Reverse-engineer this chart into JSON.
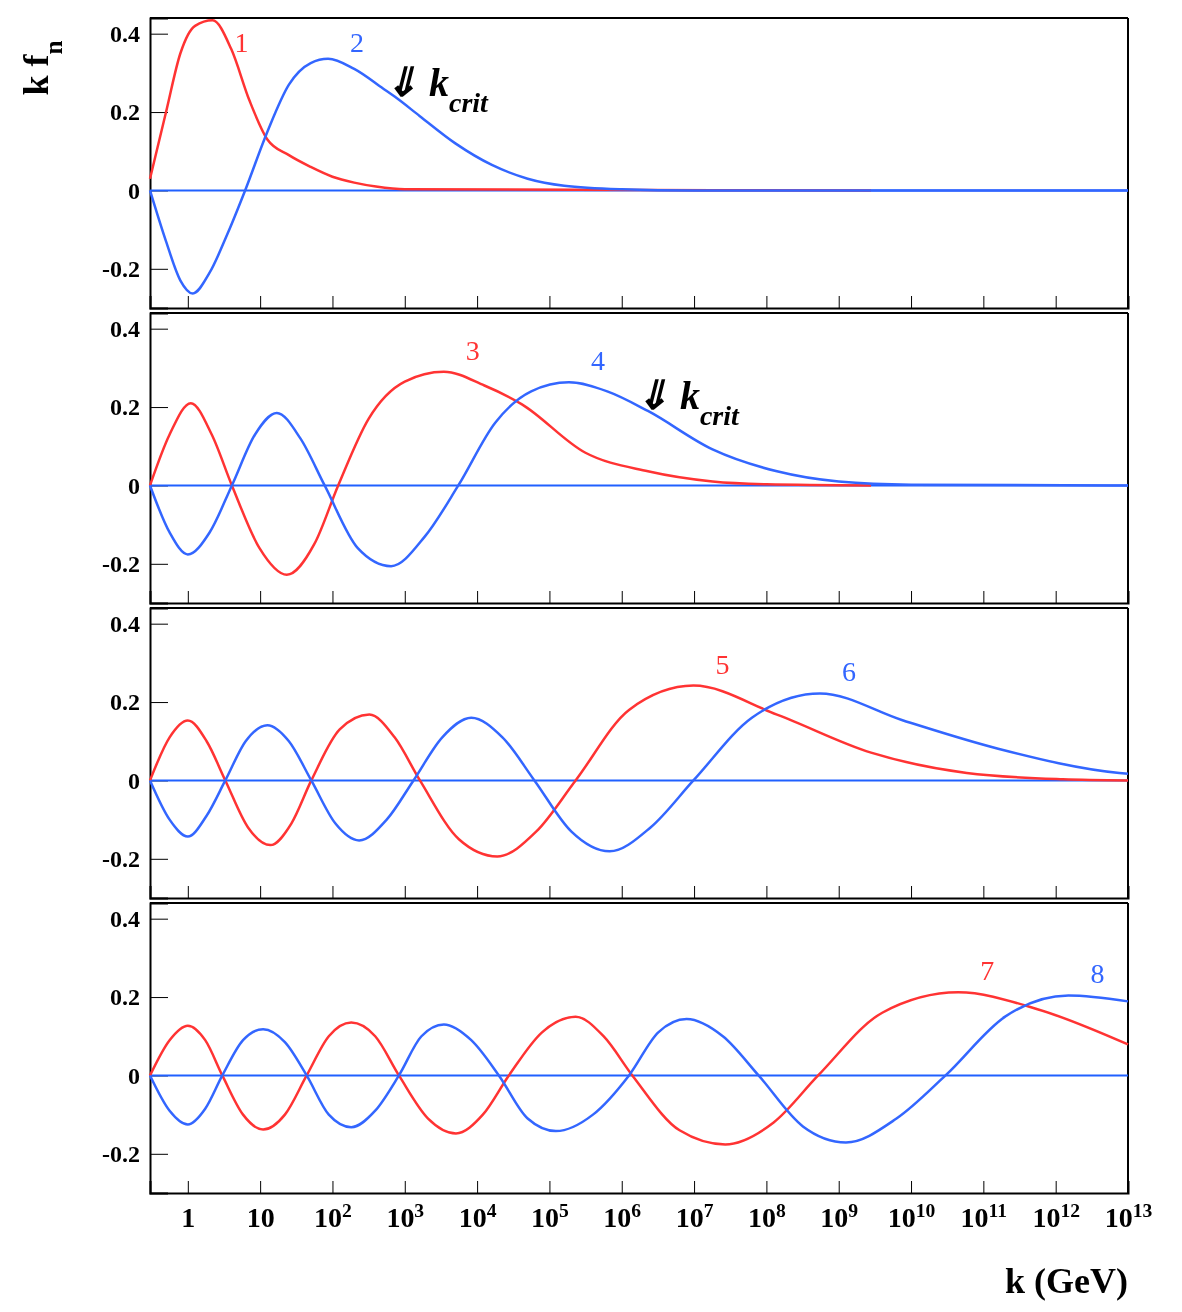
{
  "chart_data": [
    {
      "type": "line",
      "ylabel": "k f$_{n}$",
      "xlim": [
        0.3,
        10000000000000.0
      ],
      "ylim": [
        -0.3,
        0.44
      ],
      "log": "x",
      "grid": false,
      "tick_labels": "y",
      "xticks": [
        {
          "value": 1,
          "label": null
        },
        {
          "value": 10,
          "label": null
        },
        {
          "value": 100,
          "label": null
        },
        {
          "value": 1000,
          "label": null
        },
        {
          "value": 10000.0,
          "label": null
        },
        {
          "value": 100000.0,
          "label": null
        },
        {
          "value": 1000000.0,
          "label": null
        },
        {
          "value": 10000000.0,
          "label": null
        },
        {
          "value": 100000000.0,
          "label": null
        },
        {
          "value": 1000000000.0,
          "label": null
        },
        {
          "value": 10000000000.0,
          "label": null
        },
        {
          "value": 100000000000.0,
          "label": null
        },
        {
          "value": 1000000000000.0,
          "label": null
        },
        {
          "value": 10000000000000.0,
          "label": null
        }
      ],
      "yticks": [
        -0.2,
        0,
        0.2,
        0.4
      ],
      "ref_lines": [
        {
          "axis": "y",
          "value": 0,
          "color": "#2060ff"
        }
      ],
      "annotations": [
        {
          "text": "⇓ k$_{crit}$",
          "x": 780,
          "y": 0.235
        }
      ],
      "series": [
        {
          "name": "1",
          "color": "#ff3333",
          "x": [
            0.3,
            0.5,
            0.79,
            1.26,
            2.2,
            4,
            7.1,
            12.6,
            25,
            50,
            100,
            200,
            400,
            1000,
            2800000000.0
          ],
          "values": [
            0.03,
            0.2,
            0.35,
            0.42,
            0.434,
            0.36,
            0.23,
            0.13,
            0.09,
            0.06,
            0.035,
            0.02,
            0.01,
            0.003,
            0
          ]
        },
        {
          "name": "2",
          "color": "#3366ff",
          "x": [
            0.3,
            0.5,
            0.79,
            1.17,
            2,
            3.55,
            6.2,
            12.6,
            25,
            50,
            87,
            200,
            500,
            780,
            1600,
            5000,
            16000,
            50000,
            160000.0,
            1000000.0,
            10000000.0,
            10000000000000.0
          ],
          "values": [
            0,
            -0.13,
            -0.23,
            -0.263,
            -0.21,
            -0.11,
            0,
            0.15,
            0.27,
            0.325,
            0.336,
            0.31,
            0.26,
            0.235,
            0.19,
            0.12,
            0.065,
            0.03,
            0.012,
            0.003,
            0,
            0
          ]
        }
      ]
    },
    {
      "type": "line",
      "xlim": [
        0.3,
        10000000000000.0
      ],
      "ylim": [
        -0.3,
        0.44
      ],
      "log": "x",
      "grid": false,
      "tick_labels": "y",
      "xticks": [
        {
          "value": 1,
          "label": null
        },
        {
          "value": 10,
          "label": null
        },
        {
          "value": 100,
          "label": null
        },
        {
          "value": 1000,
          "label": null
        },
        {
          "value": 10000.0,
          "label": null
        },
        {
          "value": 100000.0,
          "label": null
        },
        {
          "value": 1000000.0,
          "label": null
        },
        {
          "value": 10000000.0,
          "label": null
        },
        {
          "value": 100000000.0,
          "label": null
        },
        {
          "value": 1000000000.0,
          "label": null
        },
        {
          "value": 10000000000.0,
          "label": null
        },
        {
          "value": 100000000000.0,
          "label": null
        },
        {
          "value": 1000000000000.0,
          "label": null
        },
        {
          "value": 10000000000000.0,
          "label": null
        }
      ],
      "yticks": [
        -0.2,
        0,
        0.2,
        0.4
      ],
      "ref_lines": [
        {
          "axis": "y",
          "value": 0,
          "color": "#2060ff"
        }
      ],
      "annotations": [
        {
          "text": "⇓ k$_{crit}$",
          "x": 2300000.0,
          "y": 0.19
        }
      ],
      "series": [
        {
          "name": "3",
          "color": "#ff3333",
          "x": [
            0.3,
            0.56,
            1.1,
            2.14,
            4.07,
            9.8,
            23.4,
            56,
            120,
            316,
            1000,
            3470,
            12600,
            41700,
            310000.0,
            2300000.0,
            18000000.0,
            100000000.0,
            2800000000.0
          ],
          "values": [
            0,
            0.13,
            0.21,
            0.13,
            0,
            -0.16,
            -0.228,
            -0.15,
            0,
            0.17,
            0.265,
            0.29,
            0.255,
            0.207,
            0.084,
            0.036,
            0.01,
            0.003,
            0
          ]
        },
        {
          "name": "4",
          "color": "#3366ff",
          "x": [
            0.3,
            0.56,
            1,
            2,
            4.07,
            8.5,
            17,
            36,
            78,
            224,
            646,
            1900,
            5500,
            17800,
            56000,
            186000.0,
            630000.0,
            2300000.0,
            18000000.0,
            140000000.0,
            1000000000.0,
            10000000000.0,
            10000000000000.0
          ],
          "values": [
            0,
            -0.12,
            -0.176,
            -0.12,
            0,
            0.13,
            0.185,
            0.12,
            0,
            -0.16,
            -0.206,
            -0.13,
            0,
            0.16,
            0.24,
            0.263,
            0.24,
            0.19,
            0.092,
            0.036,
            0.01,
            0.002,
            0
          ]
        }
      ]
    },
    {
      "type": "line",
      "xlim": [
        0.3,
        10000000000000.0
      ],
      "ylim": [
        -0.3,
        0.44
      ],
      "log": "x",
      "grid": false,
      "tick_labels": "y",
      "xticks": [
        {
          "value": 1,
          "label": null
        },
        {
          "value": 10,
          "label": null
        },
        {
          "value": 100,
          "label": null
        },
        {
          "value": 1000,
          "label": null
        },
        {
          "value": 10000.0,
          "label": null
        },
        {
          "value": 100000.0,
          "label": null
        },
        {
          "value": 1000000.0,
          "label": null
        },
        {
          "value": 10000000.0,
          "label": null
        },
        {
          "value": 100000000.0,
          "label": null
        },
        {
          "value": 1000000000.0,
          "label": null
        },
        {
          "value": 10000000000.0,
          "label": null
        },
        {
          "value": 100000000000.0,
          "label": null
        },
        {
          "value": 1000000000000.0,
          "label": null
        },
        {
          "value": 10000000000000.0,
          "label": null
        }
      ],
      "yticks": [
        -0.2,
        0,
        0.2,
        0.4
      ],
      "ref_lines": [
        {
          "axis": "y",
          "value": 0,
          "color": "#2060ff"
        }
      ],
      "series": [
        {
          "name": "5",
          "color": "#ff3333",
          "x": [
            0.3,
            0.56,
            1,
            1.82,
            3.3,
            6.8,
            13.8,
            27,
            51,
            126,
            324,
            724,
            1620,
            5600,
            19000,
            66000,
            230000.0,
            1260000.0,
            9800000.0,
            140000000.0,
            2800000000.0,
            59000000000.0,
            1260000000000.0,
            10000000000000.0
          ],
          "values": [
            0,
            0.11,
            0.153,
            0.1,
            0,
            -0.12,
            -0.165,
            -0.11,
            0,
            0.13,
            0.168,
            0.11,
            0,
            -0.15,
            -0.194,
            -0.13,
            0,
            0.18,
            0.242,
            0.168,
            0.071,
            0.019,
            0.003,
            0
          ]
        },
        {
          "name": "6",
          "color": "#3366ff",
          "x": [
            0.3,
            0.56,
            1,
            1.82,
            3.3,
            6.3,
            12.6,
            25,
            51,
            110,
            234,
            562,
            1320,
            3300,
            8300,
            22400,
            62000,
            200000.0,
            680000.0,
            2500000.0,
            9800000.0,
            63000000.0,
            550000000.0,
            7800000000.0,
            160000000000.0,
            7600000000000.0,
            10000000000000.0
          ],
          "values": [
            0,
            -0.1,
            -0.143,
            -0.09,
            0,
            0.1,
            0.141,
            0.1,
            0,
            -0.11,
            -0.153,
            -0.1,
            0,
            0.11,
            0.16,
            0.11,
            0,
            -0.13,
            -0.181,
            -0.12,
            0,
            0.16,
            0.222,
            0.153,
            0.081,
            0.019,
            0.017
          ]
        }
      ]
    },
    {
      "type": "line",
      "xlabel": "k (GeV)",
      "xlim": [
        0.3,
        10000000000000.0
      ],
      "ylim": [
        -0.3,
        0.44
      ],
      "log": "x",
      "grid": false,
      "xticks": [
        1,
        10,
        {
          "value": 100,
          "label": "10$^{2}$"
        },
        {
          "value": 1000,
          "label": "10$^{3}$"
        },
        {
          "value": 10000.0,
          "label": "10$^{4}$"
        },
        {
          "value": 100000.0,
          "label": "10$^{5}$"
        },
        {
          "value": 1000000.0,
          "label": "10$^{6}$"
        },
        {
          "value": 10000000.0,
          "label": "10$^{7}$"
        },
        {
          "value": 100000000.0,
          "label": "10$^{8}$"
        },
        {
          "value": 1000000000.0,
          "label": "10$^{9}$"
        },
        {
          "value": 10000000000.0,
          "label": "10$^{10}$"
        },
        {
          "value": 100000000000.0,
          "label": "10$^{11}$"
        },
        {
          "value": 1000000000000.0,
          "label": "10$^{12}$"
        },
        {
          "value": 10000000000000.0,
          "label": "10$^{13}$"
        }
      ],
      "yticks": [
        -0.2,
        0,
        0.2,
        0.4
      ],
      "ref_lines": [
        {
          "axis": "y",
          "value": 0,
          "color": "#2060ff"
        }
      ],
      "series": [
        {
          "name": "7",
          "color": "#ff3333",
          "x": [
            0.3,
            0.56,
            1,
            1.74,
            3,
            5.8,
            11,
            22,
            44,
            89,
            182,
            390,
            830,
            2100,
            5100,
            12000,
            27500,
            79000,
            230000.0,
            560000.0,
            1400000.0,
            6300000.0,
            27000000.0,
            126000000.0,
            520000000.0,
            4000000000.0,
            45000000000.0,
            560000000000.0,
            10000000000000.0
          ],
          "values": [
            0,
            0.09,
            0.127,
            0.09,
            0,
            -0.1,
            -0.138,
            -0.1,
            0,
            0.1,
            0.135,
            0.1,
            0,
            -0.11,
            -0.148,
            -0.1,
            0,
            0.11,
            0.15,
            0.1,
            0,
            -0.14,
            -0.176,
            -0.12,
            0,
            0.16,
            0.212,
            0.169,
            0.079
          ]
        },
        {
          "name": "8",
          "color": "#3366ff",
          "x": [
            0.3,
            0.56,
            1,
            1.74,
            3,
            5.8,
            11,
            22,
            44,
            89,
            182,
            390,
            830,
            1700,
            3470,
            8300,
            20000,
            50000,
            123000.0,
            400000.0,
            1260000.0,
            3200000.0,
            7900000.0,
            25000000.0,
            78000000.0,
            320000000.0,
            1260000000.0,
            6300000000.0,
            30000000000.0,
            200000000000.0,
            1500000000000.0,
            10000000000000.0
          ],
          "values": [
            0,
            -0.09,
            -0.125,
            -0.085,
            0,
            0.09,
            0.118,
            0.085,
            0,
            -0.1,
            -0.132,
            -0.09,
            0,
            0.1,
            0.13,
            0.09,
            0,
            -0.11,
            -0.142,
            -0.1,
            0,
            0.11,
            0.144,
            0.1,
            0,
            -0.13,
            -0.171,
            -0.11,
            0,
            0.15,
            0.204,
            0.189
          ]
        }
      ]
    }
  ]
}
